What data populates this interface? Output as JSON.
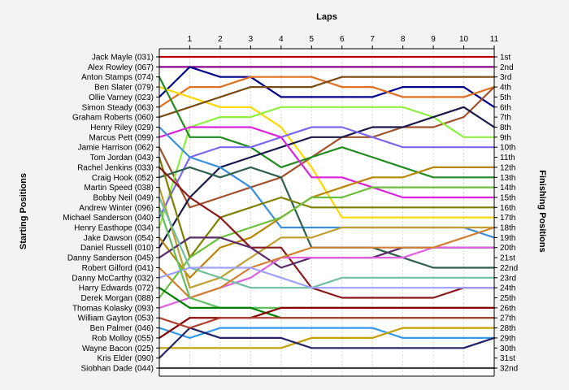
{
  "chart_data": {
    "type": "line",
    "title": "",
    "xlabel": "Laps",
    "ylabel": "Starting Positions",
    "ylabel_right": "Finishing Positions",
    "x": [
      0,
      1,
      2,
      3,
      4,
      5,
      6,
      7,
      8,
      9,
      10,
      11
    ],
    "xlim": [
      0,
      11
    ],
    "ylim": [
      1,
      32
    ],
    "y_inverted": true,
    "grid": true,
    "x_ticks": [
      "1",
      "2",
      "3",
      "4",
      "5",
      "6",
      "7",
      "8",
      "9",
      "10",
      "11"
    ],
    "left_labels": [
      "Jack Mayle (031)",
      "Alex Rowley (067)",
      "Anton Stamps (074)",
      "Ben Slater (079)",
      "Ollie Varney (023)",
      "Simon Steady (063)",
      "Graham Roberts (060)",
      "Henry Riley (029)",
      "Marcus Pett (099)",
      "Jamie Harrison (062)",
      "Tom Jordan (043)",
      "Rachel Jenkins (033)",
      "Craig Hook (052)",
      "Martin Speed (038)",
      "Bobby Neil (049)",
      "Andrew Winter (096)",
      "Michael Sanderson (040)",
      "Henry Easthope (034)",
      "Jake Dawson (054)",
      "Daniel Russell (010)",
      "Danny Sanderson (045)",
      "Robert Gilford (041)",
      "Danny McCarthy (032)",
      "Harry Edwards (072)",
      "Derek Morgan (088)",
      "Thomas Kolasky (093)",
      "William Gayton (053)",
      "Ben Palmer (046)",
      "Rob Molloy (055)",
      "Wayne Bacon (025)",
      "Kris Elder (090)",
      "Siobhan Dade (044)"
    ],
    "right_labels": [
      "1st",
      "2nd",
      "3rd",
      "4th",
      "5th",
      "6th",
      "7th",
      "8th",
      "9th",
      "10th",
      "11th",
      "12th",
      "13th",
      "14th",
      "15th",
      "16th",
      "17th",
      "18th",
      "19th",
      "20th",
      "21st",
      "22nd",
      "23rd",
      "24th",
      "25th",
      "26th",
      "27th",
      "28th",
      "29th",
      "30th",
      "31st",
      "32nd"
    ],
    "series": [
      {
        "color": "#c00000",
        "values": [
          1,
          1,
          1,
          1,
          1,
          1,
          1,
          1,
          1,
          1,
          1,
          1
        ]
      },
      {
        "color": "#8b008b",
        "values": [
          2,
          2,
          2,
          2,
          2,
          2,
          2,
          2,
          2,
          2,
          2,
          2
        ]
      },
      {
        "color": "#00008b",
        "values": [
          5,
          2,
          3,
          3,
          5,
          5,
          5,
          5,
          4,
          4,
          4,
          6
        ]
      },
      {
        "color": "#e07020",
        "values": [
          6,
          4,
          4,
          3,
          3,
          3,
          4,
          4,
          5,
          5,
          5,
          4
        ]
      },
      {
        "color": "#ffd700",
        "values": [
          4,
          5,
          6,
          6,
          8,
          12,
          17,
          17,
          17,
          17,
          17,
          17
        ]
      },
      {
        "color": "#7b4a12",
        "values": [
          7,
          6,
          5,
          4,
          4,
          4,
          3,
          3,
          3,
          3,
          3,
          3
        ]
      },
      {
        "color": "#a0522d",
        "values": [
          10,
          16,
          15,
          14,
          13,
          11,
          9,
          9,
          8,
          8,
          7,
          4
        ]
      },
      {
        "color": "#90ee40",
        "values": [
          18,
          8,
          7,
          7,
          6,
          6,
          6,
          6,
          6,
          7,
          9,
          9
        ]
      },
      {
        "color": "#228b22",
        "values": [
          3,
          9,
          9,
          10,
          12,
          11,
          10,
          11,
          12,
          13,
          13,
          13
        ]
      },
      {
        "color": "#1a1a4a",
        "values": [
          20,
          15,
          12,
          11,
          10,
          9,
          9,
          8,
          8,
          7,
          6,
          8
        ]
      },
      {
        "color": "#7b68ee",
        "values": [
          17,
          11,
          10,
          10,
          9,
          8,
          8,
          9,
          10,
          10,
          10,
          10
        ]
      },
      {
        "color": "#dd22dd",
        "values": [
          9,
          8,
          8,
          8,
          9,
          13,
          13,
          14,
          15,
          15,
          15,
          15
        ]
      },
      {
        "color": "#3a8ee0",
        "values": [
          8,
          11,
          12,
          14,
          18,
          18,
          18,
          18,
          18,
          18,
          18,
          19
        ]
      },
      {
        "color": "#2f5f4f",
        "values": [
          13,
          12,
          13,
          12,
          13,
          20,
          20,
          20,
          21,
          22,
          22,
          22
        ]
      },
      {
        "color": "#b8860b",
        "values": [
          19,
          23,
          20,
          19,
          17,
          15,
          14,
          13,
          13,
          12,
          12,
          12
        ]
      },
      {
        "color": "#808000",
        "values": [
          11,
          21,
          17,
          16,
          15,
          16,
          16,
          16,
          16,
          16,
          16,
          16
        ]
      },
      {
        "color": "#6bbf3a",
        "values": [
          25,
          21,
          19,
          18,
          17,
          15,
          15,
          14,
          14,
          14,
          14,
          14
        ]
      },
      {
        "color": "#c0a030",
        "values": [
          14,
          24,
          23,
          21,
          19,
          19,
          18,
          18,
          18,
          18,
          18,
          18
        ]
      },
      {
        "color": "#8b1a1a",
        "values": [
          12,
          15,
          17,
          20,
          20,
          24,
          25,
          25,
          25,
          25,
          24,
          24
        ]
      },
      {
        "color": "#5a2a6a",
        "values": [
          21,
          19,
          19,
          20,
          22,
          21,
          21,
          21,
          20,
          20,
          20,
          20
        ]
      },
      {
        "color": "#e060e0",
        "values": [
          26,
          25,
          24,
          23,
          21,
          21,
          21,
          21,
          21,
          20,
          20,
          20
        ]
      },
      {
        "color": "#70c0a0",
        "values": [
          15,
          22,
          23,
          24,
          24,
          24,
          23,
          23,
          23,
          23,
          23,
          23
        ]
      },
      {
        "color": "#d08030",
        "values": [
          22,
          25,
          24,
          22,
          21,
          20,
          20,
          20,
          20,
          20,
          19,
          18
        ]
      },
      {
        "color": "#a0a0ff",
        "values": [
          23,
          22,
          22,
          22,
          23,
          24,
          24,
          24,
          24,
          24,
          24,
          24
        ]
      },
      {
        "color": "#5ec05e",
        "values": [
          16,
          25,
          26,
          26,
          26,
          26,
          26,
          26,
          26,
          26,
          26,
          26
        ]
      },
      {
        "color": "#008000",
        "values": [
          24,
          26,
          26,
          26,
          27,
          27,
          27,
          27,
          27,
          27,
          27,
          27
        ]
      },
      {
        "color": "#3399ee",
        "values": [
          28,
          29,
          28,
          28,
          28,
          28,
          28,
          28,
          29,
          29,
          29,
          29
        ]
      },
      {
        "color": "#c0a000",
        "values": [
          30,
          30,
          30,
          30,
          30,
          29,
          29,
          29,
          28,
          28,
          28,
          28
        ]
      },
      {
        "color": "#222266",
        "values": [
          31,
          28,
          29,
          29,
          29,
          30,
          30,
          30,
          30,
          30,
          30,
          29
        ]
      },
      {
        "color": "#8b0000",
        "values": [
          29,
          27,
          27,
          27,
          26,
          26,
          26,
          26,
          26,
          26,
          26,
          26
        ]
      },
      {
        "color": "#b04030",
        "values": [
          27,
          28,
          27,
          27,
          27,
          27,
          27,
          27,
          27,
          27,
          27,
          27
        ]
      },
      {
        "color": "#404040",
        "values": [
          32,
          32,
          32,
          32,
          32,
          32,
          32,
          32,
          32,
          32,
          32,
          32
        ]
      }
    ]
  }
}
